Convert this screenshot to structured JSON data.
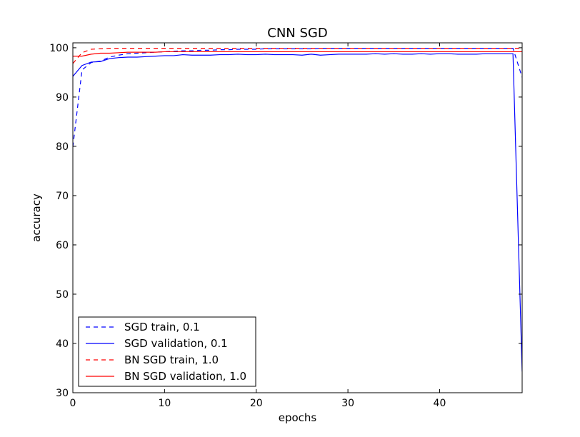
{
  "chart_data": {
    "type": "line",
    "title": "CNN SGD",
    "xlabel": "epochs",
    "ylabel": "accuracy",
    "xlim": [
      0,
      49
    ],
    "ylim": [
      30,
      101
    ],
    "xticks": [
      0,
      10,
      20,
      30,
      40
    ],
    "yticks": [
      30,
      40,
      50,
      60,
      70,
      80,
      90,
      100
    ],
    "grid": false,
    "legend_position": "lower-left",
    "x": [
      0,
      1,
      2,
      3,
      4,
      5,
      6,
      7,
      8,
      9,
      10,
      11,
      12,
      13,
      14,
      15,
      16,
      17,
      18,
      19,
      20,
      21,
      22,
      23,
      24,
      25,
      26,
      27,
      28,
      29,
      30,
      31,
      32,
      33,
      34,
      35,
      36,
      37,
      38,
      39,
      40,
      41,
      42,
      43,
      44,
      45,
      46,
      47,
      48,
      49
    ],
    "series": [
      {
        "name": "SGD train, 0.1",
        "color": "#0000ff",
        "dashed": true,
        "values": [
          79.9,
          95.5,
          97.0,
          97.3,
          98.1,
          98.5,
          98.8,
          98.9,
          99.0,
          99.1,
          99.2,
          99.3,
          99.4,
          99.4,
          99.5,
          99.5,
          99.6,
          99.6,
          99.7,
          99.7,
          99.7,
          99.8,
          99.8,
          99.8,
          99.8,
          99.8,
          99.8,
          99.9,
          99.9,
          99.9,
          99.9,
          99.9,
          99.9,
          99.9,
          99.9,
          99.9,
          99.9,
          99.9,
          99.9,
          99.9,
          99.9,
          99.9,
          99.9,
          99.9,
          99.9,
          99.9,
          99.9,
          99.9,
          99.9,
          94.0
        ]
      },
      {
        "name": "SGD validation, 0.1",
        "color": "#0000ff",
        "dashed": false,
        "values": [
          94.2,
          96.4,
          97.1,
          97.2,
          97.8,
          98.0,
          98.1,
          98.1,
          98.2,
          98.3,
          98.4,
          98.4,
          98.6,
          98.5,
          98.5,
          98.5,
          98.6,
          98.6,
          98.7,
          98.6,
          98.6,
          98.7,
          98.6,
          98.6,
          98.6,
          98.5,
          98.7,
          98.5,
          98.6,
          98.7,
          98.7,
          98.7,
          98.7,
          98.8,
          98.7,
          98.8,
          98.7,
          98.7,
          98.8,
          98.7,
          98.8,
          98.8,
          98.7,
          98.7,
          98.7,
          98.8,
          98.8,
          98.8,
          98.8,
          34.3
        ]
      },
      {
        "name": "BN SGD train, 1.0",
        "color": "#ff0000",
        "dashed": true,
        "values": [
          96.8,
          99.0,
          99.7,
          99.8,
          99.9,
          99.9,
          99.9,
          99.9,
          99.9,
          99.9,
          99.9,
          99.9,
          99.9,
          99.9,
          99.9,
          99.9,
          99.9,
          99.9,
          99.9,
          99.9,
          99.9,
          99.9,
          99.9,
          99.9,
          99.9,
          99.9,
          99.9,
          99.9,
          99.9,
          99.9,
          99.9,
          99.9,
          99.9,
          99.9,
          99.9,
          99.9,
          99.9,
          99.9,
          99.9,
          99.9,
          99.9,
          99.9,
          99.9,
          99.9,
          99.9,
          99.9,
          99.9,
          99.9,
          99.9,
          99.9
        ]
      },
      {
        "name": "BN SGD validation, 1.0",
        "color": "#ff0000",
        "dashed": false,
        "values": [
          98.3,
          98.3,
          98.7,
          98.9,
          98.9,
          99.0,
          99.1,
          99.1,
          99.1,
          99.1,
          99.2,
          99.2,
          99.2,
          99.2,
          99.2,
          99.2,
          99.2,
          99.2,
          99.2,
          99.2,
          99.2,
          99.2,
          99.2,
          99.2,
          99.2,
          99.2,
          99.2,
          99.2,
          99.2,
          99.2,
          99.2,
          99.2,
          99.2,
          99.2,
          99.2,
          99.2,
          99.2,
          99.2,
          99.2,
          99.2,
          99.2,
          99.2,
          99.2,
          99.2,
          99.2,
          99.2,
          99.2,
          99.2,
          99.2,
          99.2
        ]
      }
    ]
  }
}
